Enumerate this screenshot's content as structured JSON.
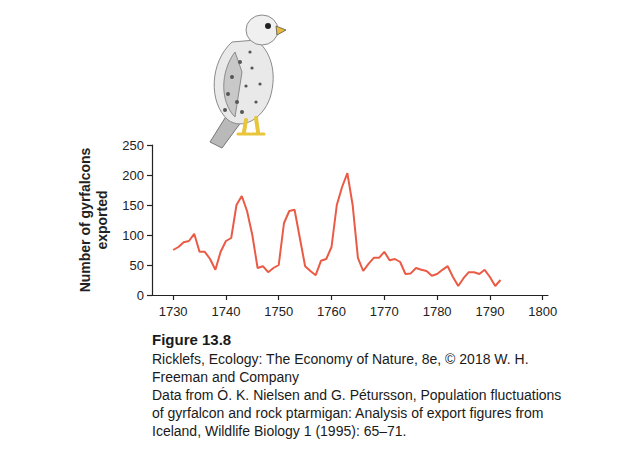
{
  "chart_data": {
    "type": "line",
    "y_label": "Number of gyrfalcons exported",
    "x": [
      1730,
      1731,
      1732,
      1733,
      1734,
      1735,
      1736,
      1737,
      1738,
      1739,
      1740,
      1741,
      1742,
      1743,
      1744,
      1745,
      1746,
      1747,
      1748,
      1749,
      1750,
      1751,
      1752,
      1753,
      1754,
      1755,
      1756,
      1757,
      1758,
      1759,
      1760,
      1761,
      1762,
      1763,
      1764,
      1765,
      1766,
      1767,
      1768,
      1769,
      1770,
      1771,
      1772,
      1773,
      1774,
      1775,
      1776,
      1777,
      1778,
      1779,
      1780,
      1781,
      1782,
      1783,
      1784,
      1785,
      1786,
      1787,
      1788,
      1789,
      1790,
      1791,
      1792
    ],
    "values": [
      75,
      80,
      88,
      90,
      102,
      72,
      72,
      60,
      42,
      72,
      90,
      95,
      150,
      165,
      140,
      100,
      45,
      48,
      38,
      45,
      50,
      120,
      140,
      142,
      95,
      48,
      40,
      33,
      57,
      60,
      80,
      150,
      180,
      203,
      150,
      62,
      40,
      52,
      62,
      62,
      72,
      58,
      60,
      55,
      35,
      36,
      45,
      42,
      40,
      32,
      35,
      42,
      48,
      30,
      15,
      28,
      38,
      38,
      35,
      42,
      30,
      15,
      25
    ],
    "color": "#ea5b45",
    "xlim": [
      1726,
      1801
    ],
    "xticks": [
      1730,
      1740,
      1750,
      1760,
      1770,
      1780,
      1790,
      1800
    ],
    "ylim": [
      0,
      250
    ],
    "yticks": [
      0,
      50,
      100,
      150,
      200,
      250
    ],
    "grid": false
  },
  "caption": {
    "label": "Figure 13.8",
    "lines": [
      "Ricklefs, Ecology: The Economy of Nature, 8e, © 2018 W. H. Freeman and Company",
      "Data from Ó. K. Nielsen and G. Pétursson, Population fluctuations of gyrfalcon and rock ptarmigan: Analysis of export figures from Iceland, Wildlife Biology 1 (1995): 65–71."
    ]
  }
}
